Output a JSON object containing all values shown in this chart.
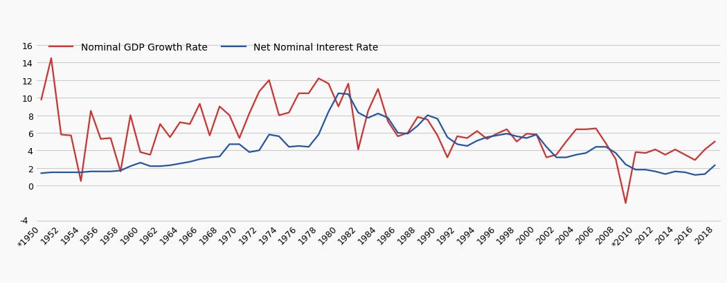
{
  "years": [
    1950,
    1951,
    1952,
    1953,
    1954,
    1955,
    1956,
    1957,
    1958,
    1959,
    1960,
    1961,
    1962,
    1963,
    1964,
    1965,
    1966,
    1967,
    1968,
    1969,
    1970,
    1971,
    1972,
    1973,
    1974,
    1975,
    1976,
    1977,
    1978,
    1979,
    1980,
    1981,
    1982,
    1983,
    1984,
    1985,
    1986,
    1987,
    1988,
    1989,
    1990,
    1991,
    1992,
    1993,
    1994,
    1995,
    1996,
    1997,
    1998,
    1999,
    2000,
    2001,
    2002,
    2003,
    2004,
    2005,
    2006,
    2007,
    2008,
    2009,
    2010,
    2011,
    2012,
    2013,
    2014,
    2015,
    2016,
    2017,
    2018
  ],
  "gdp_growth": [
    9.8,
    14.5,
    5.8,
    5.7,
    0.5,
    8.5,
    5.3,
    5.4,
    1.6,
    8.0,
    3.8,
    3.5,
    7.0,
    5.5,
    7.2,
    7.0,
    9.3,
    5.7,
    9.0,
    8.0,
    5.4,
    8.2,
    10.7,
    12.0,
    8.0,
    8.3,
    10.5,
    10.5,
    12.2,
    11.6,
    9.0,
    11.6,
    4.1,
    8.5,
    11.0,
    7.3,
    5.6,
    6.0,
    7.8,
    7.5,
    5.7,
    3.2,
    5.6,
    5.4,
    6.2,
    5.3,
    5.9,
    6.4,
    5.0,
    5.9,
    5.8,
    3.2,
    3.5,
    5.0,
    6.4,
    6.4,
    6.5,
    4.8,
    3.0,
    -2.0,
    3.8,
    3.7,
    4.1,
    3.5,
    4.1,
    3.5,
    2.9,
    4.1,
    5.0
  ],
  "interest_rate": [
    1.4,
    1.5,
    1.5,
    1.5,
    1.5,
    1.6,
    1.6,
    1.6,
    1.7,
    2.2,
    2.6,
    2.2,
    2.2,
    2.3,
    2.5,
    2.7,
    3.0,
    3.2,
    3.3,
    4.7,
    4.7,
    3.8,
    4.0,
    5.8,
    5.6,
    4.4,
    4.5,
    4.4,
    5.8,
    8.4,
    10.5,
    10.4,
    8.3,
    7.7,
    8.2,
    7.7,
    6.0,
    5.9,
    6.8,
    8.0,
    7.6,
    5.5,
    4.7,
    4.5,
    5.1,
    5.5,
    5.7,
    5.9,
    5.6,
    5.4,
    5.8,
    4.4,
    3.2,
    3.2,
    3.5,
    3.7,
    4.4,
    4.4,
    3.7,
    2.4,
    1.8,
    1.8,
    1.6,
    1.3,
    1.6,
    1.5,
    1.2,
    1.3,
    2.3
  ],
  "gdp_color": "#d0312d",
  "interest_color": "#2255a4",
  "background_color": "#f9f9f9",
  "grid_color": "#cccccc",
  "ylim": [
    -4,
    17
  ],
  "yticks": [
    0,
    2,
    4,
    6,
    8,
    10,
    12,
    14,
    16
  ],
  "ytick_label_minus4": "-4",
  "xtick_step": 2,
  "legend_gdp": "Nominal GDP Growth Rate",
  "legend_interest": "Net Nominal Interest Rate",
  "line_width": 1.6,
  "font_size": 10,
  "tick_font_size": 9
}
